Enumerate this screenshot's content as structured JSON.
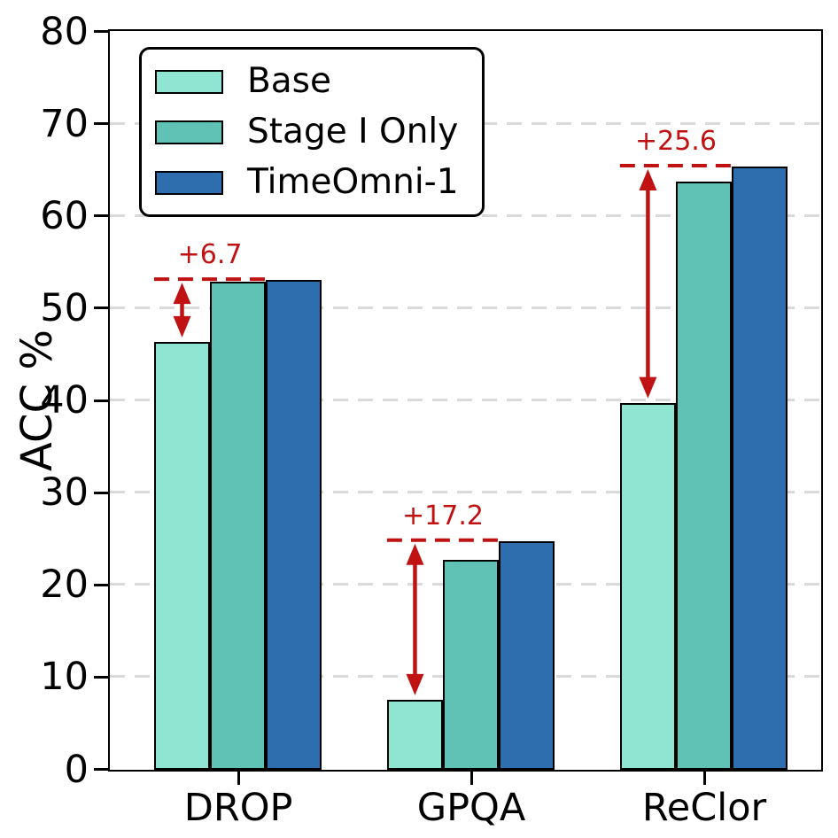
{
  "chart_data": {
    "type": "bar",
    "title": "",
    "ylabel": "ACC %",
    "xlabel": "",
    "categories": [
      "DROP",
      "GPQA",
      "ReClor"
    ],
    "series": [
      {
        "name": "Base",
        "color": "#8fe5d1",
        "values": [
          46.4,
          7.6,
          39.8
        ]
      },
      {
        "name": "Stage I Only",
        "color": "#5fc2b4",
        "values": [
          52.9,
          22.8,
          63.8
        ]
      },
      {
        "name": "TimeOmni-1",
        "color": "#2e6eae",
        "values": [
          53.1,
          24.8,
          65.4
        ]
      }
    ],
    "annotations": [
      {
        "category": "DROP",
        "label": "+6.7"
      },
      {
        "category": "GPQA",
        "label": "+17.2"
      },
      {
        "category": "ReClor",
        "label": "+25.6"
      }
    ],
    "ylim": [
      0,
      80
    ],
    "yticks": [
      0,
      10,
      20,
      30,
      40,
      50,
      60,
      70,
      80
    ],
    "xlim": [
      -0.55,
      2.5
    ],
    "bar_width": 0.24,
    "grid": "horizontal-dashed",
    "legend_position": "upper-left",
    "colors": {
      "bar_edge": "#000000",
      "annotation_red": "#c01212",
      "grid_gray": "#d9d9d9",
      "axis_black": "#000000",
      "background": "#ffffff"
    }
  }
}
